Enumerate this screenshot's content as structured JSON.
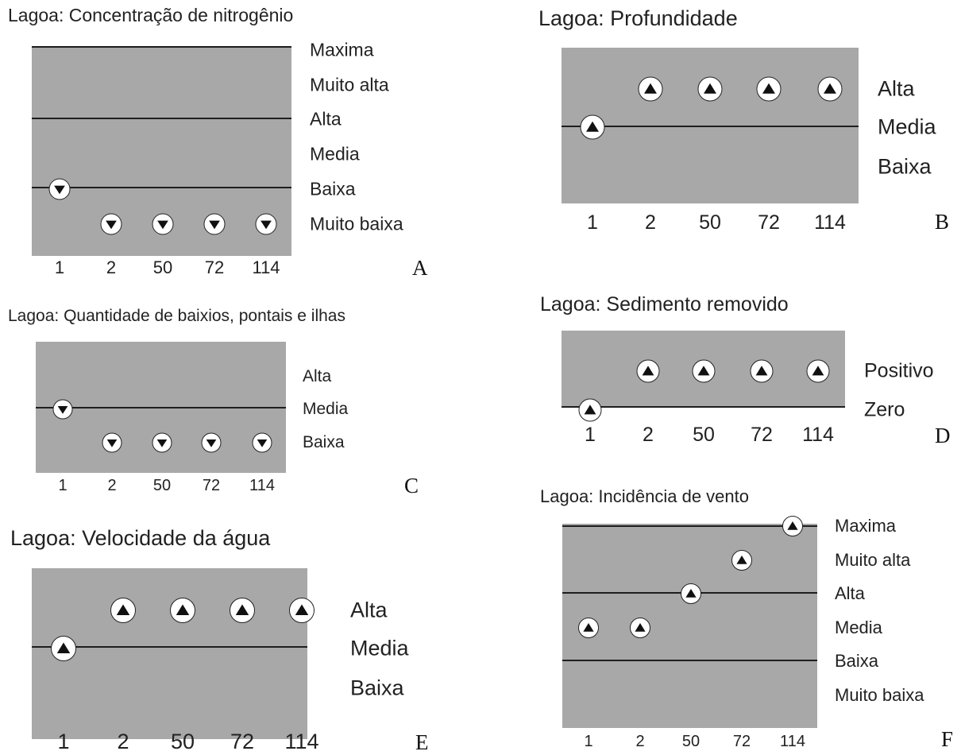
{
  "chart_data": [
    {
      "id": "A",
      "type": "scatter",
      "title": "Lagoa: Concentração de nitrogênio",
      "categories": [
        "1",
        "2",
        "50",
        "72",
        "114"
      ],
      "y_levels": [
        "Maxima",
        "Muito alta",
        "Alta",
        "Media",
        "Baixa",
        "Muito baixa"
      ],
      "values": [
        "Baixa",
        "Muito baixa",
        "Muito baixa",
        "Muito baixa",
        "Muito baixa"
      ],
      "marker": "triangle-down",
      "reference_lines": [
        "Maxima",
        "Alta",
        "Baixa"
      ],
      "panel_label": "A"
    },
    {
      "id": "B",
      "type": "scatter",
      "title": "Lagoa: Profundidade",
      "categories": [
        "1",
        "2",
        "50",
        "72",
        "114"
      ],
      "y_levels": [
        "Alta",
        "Media",
        "Baixa"
      ],
      "values": [
        "Media",
        "Alta",
        "Alta",
        "Alta",
        "Alta"
      ],
      "marker": "triangle-up",
      "reference_lines": [
        "Media"
      ],
      "panel_label": "B"
    },
    {
      "id": "C",
      "type": "scatter",
      "title": "Lagoa: Quantidade de baixios, pontais e ilhas",
      "categories": [
        "1",
        "2",
        "50",
        "72",
        "114"
      ],
      "y_levels": [
        "Alta",
        "Media",
        "Baixa"
      ],
      "values": [
        "Media",
        "Baixa",
        "Baixa",
        "Baixa",
        "Baixa"
      ],
      "marker": "triangle-down",
      "reference_lines": [
        "Media"
      ],
      "panel_label": "C"
    },
    {
      "id": "D",
      "type": "scatter",
      "title": "Lagoa: Sedimento removido",
      "categories": [
        "1",
        "2",
        "50",
        "72",
        "114"
      ],
      "y_levels": [
        "Positivo",
        "Zero"
      ],
      "values": [
        "Zero",
        "Positivo",
        "Positivo",
        "Positivo",
        "Positivo"
      ],
      "marker": "triangle-up",
      "reference_lines": [
        "Zero"
      ],
      "panel_label": "D"
    },
    {
      "id": "E",
      "type": "scatter",
      "title": "Lagoa: Velocidade da água",
      "categories": [
        "1",
        "2",
        "50",
        "72",
        "114"
      ],
      "y_levels": [
        "Alta",
        "Media",
        "Baixa"
      ],
      "values": [
        "Media",
        "Alta",
        "Alta",
        "Alta",
        "Alta"
      ],
      "marker": "triangle-up",
      "reference_lines": [
        "Media"
      ],
      "panel_label": "E"
    },
    {
      "id": "F",
      "type": "scatter",
      "title": "Lagoa: Incidência de vento",
      "categories": [
        "1",
        "2",
        "50",
        "72",
        "114"
      ],
      "y_levels": [
        "Maxima",
        "Muito alta",
        "Alta",
        "Media",
        "Baixa",
        "Muito baixa"
      ],
      "values": [
        "Media",
        "Media",
        "Alta",
        "Muito alta",
        "Maxima"
      ],
      "marker": "triangle-up",
      "reference_lines": [
        "Maxima",
        "Alta",
        "Baixa"
      ],
      "panel_label": "F"
    }
  ]
}
